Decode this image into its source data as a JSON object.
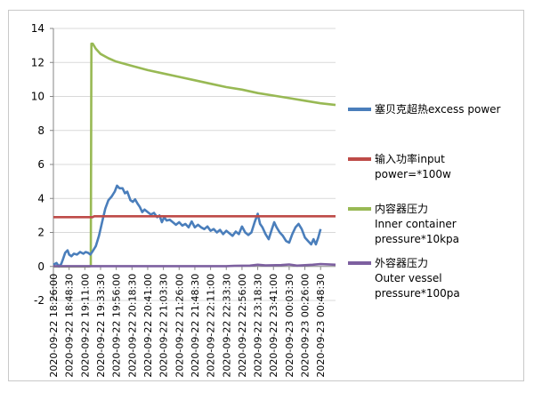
{
  "chart_data": {
    "type": "line",
    "title": "",
    "xlabel": "",
    "ylabel": "",
    "ylim": [
      -2,
      14
    ],
    "yticks": [
      -2,
      0,
      2,
      4,
      6,
      8,
      10,
      12,
      14
    ],
    "grid": {
      "horizontal": true,
      "vertical": false
    },
    "legend_position": "right",
    "x_categories": [
      "2020-09-22 18:26:00",
      "2020-09-22 18:48:30",
      "2020-09-22 19:11:00",
      "2020-09-22 19:33:30",
      "2020-09-22 19:56:00",
      "2020-09-22 20:18:30",
      "2020-09-22 20:41:00",
      "2020-09-22 21:03:30",
      "2020-09-22 21:26:00",
      "2020-09-22 21:48:30",
      "2020-09-22 22:11:00",
      "2020-09-22 22:33:30",
      "2020-09-22 22:56:00",
      "2020-09-22 23:18:30",
      "2020-09-22 23:41:00",
      "2020-09-23 00:03:30",
      "2020-09-23 00:26:00",
      "2020-09-23 00:48:30"
    ],
    "x_positions": [
      0,
      1,
      2,
      3,
      4,
      5,
      6,
      7,
      8,
      9,
      10,
      11,
      12,
      13,
      14,
      15,
      16,
      17
    ],
    "x_max": 17.95,
    "series": [
      {
        "name": "塞贝克超热excess power",
        "color": "#4a7ebb",
        "points": [
          [
            0,
            0.1
          ],
          [
            0.2,
            0.2
          ],
          [
            0.35,
            0.0
          ],
          [
            0.5,
            0.15
          ],
          [
            0.6,
            0.4
          ],
          [
            0.75,
            0.8
          ],
          [
            0.9,
            0.95
          ],
          [
            1.0,
            0.7
          ],
          [
            1.15,
            0.6
          ],
          [
            1.3,
            0.75
          ],
          [
            1.5,
            0.7
          ],
          [
            1.7,
            0.85
          ],
          [
            1.9,
            0.75
          ],
          [
            2.05,
            0.85
          ],
          [
            2.2,
            0.8
          ],
          [
            2.35,
            0.7
          ],
          [
            2.5,
            0.9
          ],
          [
            2.7,
            1.2
          ],
          [
            2.9,
            1.8
          ],
          [
            3.1,
            2.6
          ],
          [
            3.3,
            3.4
          ],
          [
            3.5,
            3.9
          ],
          [
            3.7,
            4.1
          ],
          [
            3.9,
            4.4
          ],
          [
            4.05,
            4.75
          ],
          [
            4.2,
            4.6
          ],
          [
            4.4,
            4.6
          ],
          [
            4.55,
            4.3
          ],
          [
            4.7,
            4.4
          ],
          [
            4.9,
            3.9
          ],
          [
            5.05,
            3.8
          ],
          [
            5.2,
            3.95
          ],
          [
            5.35,
            3.7
          ],
          [
            5.5,
            3.5
          ],
          [
            5.65,
            3.2
          ],
          [
            5.8,
            3.35
          ],
          [
            6.0,
            3.2
          ],
          [
            6.2,
            3.05
          ],
          [
            6.4,
            3.15
          ],
          [
            6.6,
            2.9
          ],
          [
            6.75,
            3.0
          ],
          [
            6.9,
            2.6
          ],
          [
            7.05,
            2.9
          ],
          [
            7.2,
            2.7
          ],
          [
            7.4,
            2.75
          ],
          [
            7.6,
            2.6
          ],
          [
            7.8,
            2.45
          ],
          [
            8.0,
            2.6
          ],
          [
            8.2,
            2.4
          ],
          [
            8.4,
            2.5
          ],
          [
            8.6,
            2.3
          ],
          [
            8.8,
            2.65
          ],
          [
            9.0,
            2.3
          ],
          [
            9.2,
            2.45
          ],
          [
            9.4,
            2.3
          ],
          [
            9.6,
            2.2
          ],
          [
            9.8,
            2.35
          ],
          [
            10.0,
            2.1
          ],
          [
            10.2,
            2.2
          ],
          [
            10.4,
            2.0
          ],
          [
            10.6,
            2.15
          ],
          [
            10.8,
            1.9
          ],
          [
            11.0,
            2.1
          ],
          [
            11.2,
            1.95
          ],
          [
            11.4,
            1.8
          ],
          [
            11.6,
            2.05
          ],
          [
            11.8,
            1.9
          ],
          [
            12.0,
            2.35
          ],
          [
            12.2,
            2.0
          ],
          [
            12.4,
            1.85
          ],
          [
            12.6,
            2.0
          ],
          [
            12.8,
            2.6
          ],
          [
            13.0,
            3.1
          ],
          [
            13.15,
            2.5
          ],
          [
            13.3,
            2.3
          ],
          [
            13.5,
            1.9
          ],
          [
            13.7,
            1.6
          ],
          [
            13.9,
            2.2
          ],
          [
            14.05,
            2.6
          ],
          [
            14.2,
            2.3
          ],
          [
            14.4,
            2.0
          ],
          [
            14.6,
            1.8
          ],
          [
            14.8,
            1.5
          ],
          [
            15.0,
            1.4
          ],
          [
            15.2,
            1.9
          ],
          [
            15.4,
            2.3
          ],
          [
            15.6,
            2.5
          ],
          [
            15.8,
            2.2
          ],
          [
            16.0,
            1.7
          ],
          [
            16.2,
            1.5
          ],
          [
            16.4,
            1.3
          ],
          [
            16.55,
            1.6
          ],
          [
            16.7,
            1.3
          ],
          [
            16.85,
            1.7
          ],
          [
            17.0,
            2.2
          ]
        ]
      },
      {
        "name": "输入功率input power=*100w",
        "color": "#be4b48",
        "points": [
          [
            0,
            2.9
          ],
          [
            2.5,
            2.9
          ],
          [
            2.6,
            2.95
          ],
          [
            17.95,
            2.95
          ]
        ]
      },
      {
        "name": "内容器压力 Inner container pressure*10kpa",
        "color": "#98b954",
        "points": [
          [
            0,
            0
          ],
          [
            2.3,
            0
          ],
          [
            2.38,
            0.05
          ],
          [
            2.42,
            13.1
          ],
          [
            2.5,
            13.1
          ],
          [
            2.7,
            12.8
          ],
          [
            3.0,
            12.5
          ],
          [
            3.5,
            12.25
          ],
          [
            4.0,
            12.05
          ],
          [
            5.0,
            11.8
          ],
          [
            6.0,
            11.55
          ],
          [
            7.0,
            11.35
          ],
          [
            8.0,
            11.15
          ],
          [
            9.0,
            10.95
          ],
          [
            10.0,
            10.75
          ],
          [
            11.0,
            10.55
          ],
          [
            12.0,
            10.4
          ],
          [
            13.0,
            10.2
          ],
          [
            14.0,
            10.05
          ],
          [
            15.0,
            9.9
          ],
          [
            16.0,
            9.75
          ],
          [
            17.0,
            9.6
          ],
          [
            17.95,
            9.5
          ]
        ]
      },
      {
        "name": "外容器压力 Outer vessel pressure*100pa",
        "color": "#7d60a0",
        "points": [
          [
            0,
            0.02
          ],
          [
            11.0,
            0.02
          ],
          [
            11.5,
            0.04
          ],
          [
            12.5,
            0.05
          ],
          [
            13.0,
            0.1
          ],
          [
            13.5,
            0.06
          ],
          [
            14.5,
            0.08
          ],
          [
            15.0,
            0.12
          ],
          [
            15.5,
            0.05
          ],
          [
            16.5,
            0.1
          ],
          [
            17.0,
            0.14
          ],
          [
            17.95,
            0.1
          ]
        ]
      }
    ]
  },
  "legend": [
    {
      "lines": [
        "塞贝克超热excess power"
      ],
      "color": "#4a7ebb"
    },
    {
      "lines": [
        "输入功率input",
        "power=*100w"
      ],
      "color": "#be4b48"
    },
    {
      "lines": [
        "内容器压力",
        "Inner container",
        "pressure*10kpa"
      ],
      "color": "#98b954"
    },
    {
      "lines": [
        "外容器压力",
        "Outer vessel",
        "pressure*100pa"
      ],
      "color": "#7d60a0"
    }
  ],
  "axis_colors": {
    "axis": "#868686",
    "grid": "#d9d9d9"
  }
}
